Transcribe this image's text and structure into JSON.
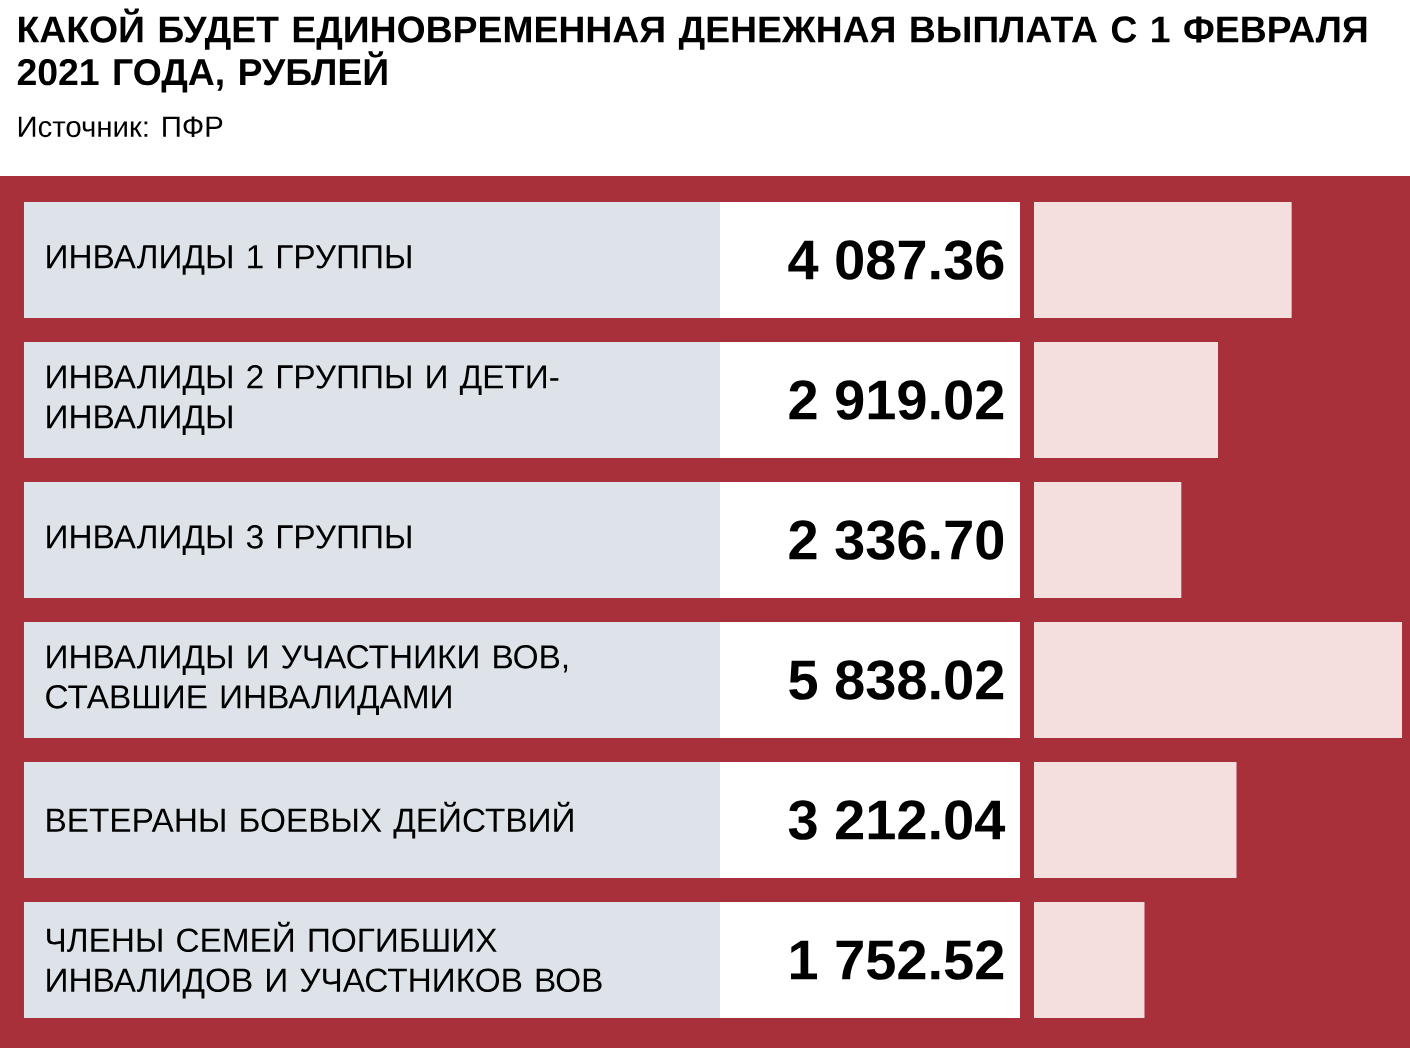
{
  "chart_data": {
    "type": "bar",
    "orientation": "horizontal",
    "title": "КАКОЙ БУДЕТ ЕДИНОВРЕМЕННАЯ ДЕНЕЖНАЯ ВЫПЛАТА С 1 ФЕВРАЛЯ 2021 ГОДА, РУБЛЕЙ",
    "annotations": [
      "Источник: ПФР"
    ],
    "categories": [
      "ИНВАЛИДЫ 1 ГРУППЫ",
      "ИНВАЛИДЫ 2 ГРУППЫ И ДЕТИ-ИНВАЛИДЫ",
      "ИНВАЛИДЫ 3 ГРУППЫ",
      "ИНВАЛИДЫ И УЧАСТНИКИ ВОВ, СТАВШИЕ ИНВАЛИДАМИ",
      "ВЕТЕРАНЫ БОЕВЫХ ДЕЙСТВИЙ",
      "ЧЛЕНЫ СЕМЕЙ ПОГИБШИХ ИНВАЛИДОВ И УЧАСТНИКОВ ВОВ"
    ],
    "values": [
      4087.36,
      2919.02,
      2336.7,
      5838.02,
      3212.04,
      1752.52
    ],
    "value_labels": [
      "4 087.36",
      "2 919.02",
      "2 336.70",
      "5 838.02",
      "3 212.04",
      "1 752.52"
    ],
    "color": "#f4dede"
  }
}
